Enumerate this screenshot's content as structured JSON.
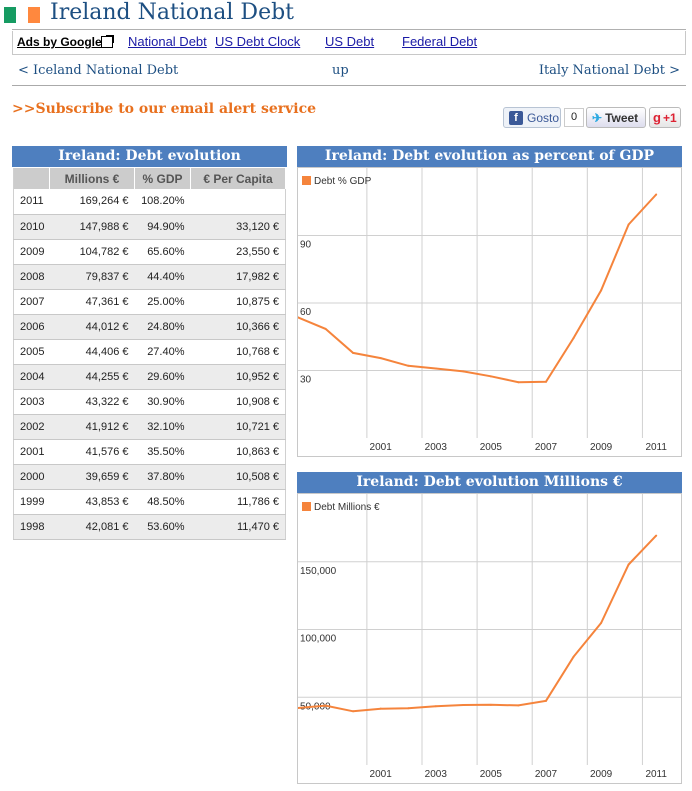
{
  "header": {
    "title": "Ireland National Debt",
    "flag_colors": [
      "#169b62",
      "#ffffff",
      "#ff883e"
    ]
  },
  "ads_bar": {
    "ads_label": "Ads by Google",
    "links": [
      "National Debt",
      "US Debt Clock",
      "US Debt",
      "Federal Debt"
    ]
  },
  "nav": {
    "prev": "< Iceland National Debt",
    "up": "up",
    "next": "Italy National Debt >"
  },
  "subscribe": ">>Subscribe to our email alert service",
  "social": {
    "facebook_label": "Gosto",
    "facebook_count": "0",
    "tweet_label": "Tweet",
    "gplus_label": "+1"
  },
  "table": {
    "title": "Ireland: Debt evolution",
    "columns": [
      "",
      "Millions €",
      "% GDP",
      "€ Per Capita"
    ],
    "rows": [
      [
        "2011",
        "169,264 €",
        "108.20%",
        ""
      ],
      [
        "2010",
        "147,988 €",
        "94.90%",
        "33,120 €"
      ],
      [
        "2009",
        "104,782 €",
        "65.60%",
        "23,550 €"
      ],
      [
        "2008",
        "79,837 €",
        "44.40%",
        "17,982 €"
      ],
      [
        "2007",
        "47,361 €",
        "25.00%",
        "10,875 €"
      ],
      [
        "2006",
        "44,012 €",
        "24.80%",
        "10,366 €"
      ],
      [
        "2005",
        "44,406 €",
        "27.40%",
        "10,768 €"
      ],
      [
        "2004",
        "44,255 €",
        "29.60%",
        "10,952 €"
      ],
      [
        "2003",
        "43,322 €",
        "30.90%",
        "10,908 €"
      ],
      [
        "2002",
        "41,912 €",
        "32.10%",
        "10,721 €"
      ],
      [
        "2001",
        "41,576 €",
        "35.50%",
        "10,863 €"
      ],
      [
        "2000",
        "39,659 €",
        "37.80%",
        "10,508 €"
      ],
      [
        "1999",
        "43,853 €",
        "48.50%",
        "11,786 €"
      ],
      [
        "1998",
        "42,081 €",
        "53.60%",
        "11,470 €"
      ]
    ]
  },
  "chart_data": [
    {
      "type": "line",
      "title": "Ireland: Debt evolution as percent of GDP",
      "legend": "top-left",
      "series": [
        {
          "name": "Debt % GDP",
          "color": "#f5843c"
        }
      ],
      "x": [
        1998,
        1999,
        2000,
        2001,
        2002,
        2003,
        2004,
        2005,
        2006,
        2007,
        2008,
        2009,
        2010,
        2011
      ],
      "values": [
        53.6,
        48.5,
        37.8,
        35.5,
        32.1,
        30.9,
        29.6,
        27.4,
        24.8,
        25.0,
        44.4,
        65.6,
        94.9,
        108.2
      ],
      "x_ticks": [
        "2001",
        "2003",
        "2005",
        "2007",
        "2009",
        "2011"
      ],
      "y_ticks": [
        "90",
        "60",
        "30"
      ],
      "ylim": [
        0,
        120
      ],
      "grid": true
    },
    {
      "type": "line",
      "title": "Ireland: Debt evolution Millions €",
      "legend": "top-left",
      "series": [
        {
          "name": "Debt Millions €",
          "color": "#f5843c"
        }
      ],
      "x": [
        1998,
        1999,
        2000,
        2001,
        2002,
        2003,
        2004,
        2005,
        2006,
        2007,
        2008,
        2009,
        2010,
        2011
      ],
      "values": [
        42081,
        43853,
        39659,
        41576,
        41912,
        43322,
        44255,
        44406,
        44012,
        47361,
        79837,
        104782,
        147988,
        169264
      ],
      "x_ticks": [
        "2001",
        "2003",
        "2005",
        "2007",
        "2009",
        "2011"
      ],
      "y_ticks": [
        "150,000",
        "100,000",
        "50,000"
      ],
      "ylim": [
        0,
        200000
      ],
      "grid": true
    }
  ]
}
